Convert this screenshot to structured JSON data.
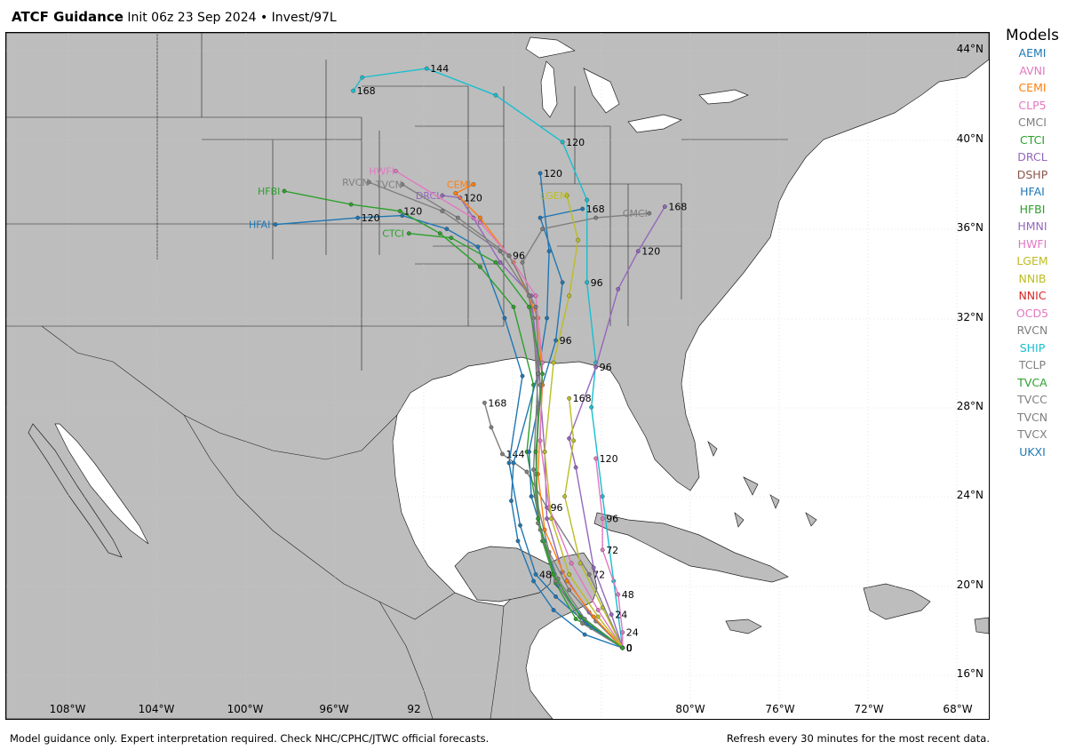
{
  "header": {
    "app": "ATCF Guidance",
    "subtitle": "Init 06z 23 Sep 2024 • Invest/97L"
  },
  "lat_labels": [
    "44°N",
    "40°N",
    "36°N",
    "32°N",
    "28°N",
    "24°N",
    "20°N",
    "16°N"
  ],
  "lon_labels": [
    "108°W",
    "104°W",
    "100°W",
    "96°W",
    "92",
    "80°W",
    "76°W",
    "72°W",
    "68°W"
  ],
  "legend": {
    "title": "Models",
    "items": [
      {
        "name": "AEMI",
        "color": "#1f77b4"
      },
      {
        "name": "AVNI",
        "color": "#e377c2"
      },
      {
        "name": "CEMI",
        "color": "#ff7f0e"
      },
      {
        "name": "CLP5",
        "color": "#e377c2"
      },
      {
        "name": "CMCI",
        "color": "#7f7f7f"
      },
      {
        "name": "CTCI",
        "color": "#2ca02c"
      },
      {
        "name": "DRCL",
        "color": "#9467bd"
      },
      {
        "name": "DSHP",
        "color": "#8c564b"
      },
      {
        "name": "HFAI",
        "color": "#1f77b4"
      },
      {
        "name": "HFBI",
        "color": "#2ca02c"
      },
      {
        "name": "HMNI",
        "color": "#9467bd"
      },
      {
        "name": "HWFI",
        "color": "#e377c2"
      },
      {
        "name": "LGEM",
        "color": "#bcbd22"
      },
      {
        "name": "NNIB",
        "color": "#bcbd22"
      },
      {
        "name": "NNIC",
        "color": "#d62728"
      },
      {
        "name": "OCD5",
        "color": "#e377c2"
      },
      {
        "name": "RVCN",
        "color": "#7f7f7f"
      },
      {
        "name": "SHIP",
        "color": "#17becf"
      },
      {
        "name": "TCLP",
        "color": "#7f7f7f"
      },
      {
        "name": "TVCA",
        "color": "#2ca02c"
      },
      {
        "name": "TVCC",
        "color": "#7f7f7f"
      },
      {
        "name": "TVCN",
        "color": "#7f7f7f"
      },
      {
        "name": "TVCX",
        "color": "#7f7f7f"
      },
      {
        "name": "UKXI",
        "color": "#1f77b4"
      }
    ]
  },
  "tracks": [
    {
      "model": "SHIP",
      "color": "#17becf",
      "label": "SHIP",
      "points": [
        [
          -83.1,
          17.2,
          "0"
        ],
        [
          -83.5,
          20.2,
          ""
        ],
        [
          -84.0,
          24.0,
          ""
        ],
        [
          -84.5,
          28.0,
          ""
        ],
        [
          -84.3,
          30.0,
          ""
        ],
        [
          -84.7,
          33.6,
          "96"
        ],
        [
          -84.7,
          37.3,
          ""
        ],
        [
          -85.8,
          39.9,
          "120"
        ],
        [
          -88.8,
          42.0,
          ""
        ],
        [
          -91.9,
          43.2,
          "144"
        ],
        [
          -94.8,
          42.8,
          ""
        ],
        [
          -95.2,
          42.2,
          "168"
        ]
      ]
    },
    {
      "model": "TCLP",
      "color": "#7f7f7f",
      "label": "TCLP",
      "points": [
        [
          -83.1,
          17.2,
          "0"
        ],
        [
          -84.6,
          20.5,
          "72"
        ],
        [
          -86.5,
          23.5,
          "96"
        ],
        [
          -87.4,
          25.1,
          ""
        ],
        [
          -88.5,
          25.9,
          "144"
        ],
        [
          -89.0,
          27.1,
          ""
        ],
        [
          -89.3,
          28.2,
          "168"
        ]
      ]
    },
    {
      "model": "OCD5",
      "color": "#e377c2",
      "label": "OCD5",
      "points": [
        [
          -83.1,
          17.2,
          "0"
        ],
        [
          -83.1,
          17.9,
          "24"
        ],
        [
          -83.3,
          19.6,
          "48"
        ],
        [
          -84.0,
          21.6,
          "72"
        ],
        [
          -84.0,
          23.0,
          "96"
        ],
        [
          -84.3,
          25.7,
          "120"
        ]
      ]
    },
    {
      "model": "HMNI",
      "color": "#9467bd",
      "label": "HMNI",
      "points": [
        [
          -83.1,
          17.2,
          "0"
        ],
        [
          -83.6,
          18.7,
          "24"
        ],
        [
          -84.4,
          20.8,
          ""
        ],
        [
          -85.2,
          25.3,
          ""
        ],
        [
          -85.5,
          26.6,
          ""
        ],
        [
          -84.3,
          29.8,
          "96"
        ],
        [
          -83.3,
          33.3,
          ""
        ],
        [
          -82.4,
          35.0,
          "120"
        ],
        [
          -81.2,
          37.0,
          "168"
        ]
      ]
    },
    {
      "model": "HFAI",
      "color": "#1f77b4",
      "label": "HFAI",
      "points": [
        [
          -83.1,
          17.2,
          "0"
        ],
        [
          -84.5,
          18.1,
          ""
        ],
        [
          -86.1,
          19.5,
          ""
        ],
        [
          -87.0,
          20.5,
          "48"
        ],
        [
          -87.7,
          22.7,
          ""
        ],
        [
          -88.2,
          25.5,
          ""
        ],
        [
          -87.6,
          29.4,
          ""
        ],
        [
          -88.4,
          32.0,
          ""
        ],
        [
          -89.6,
          35.2,
          ""
        ],
        [
          -91.0,
          36.0,
          ""
        ],
        [
          -93.0,
          36.6,
          ""
        ],
        [
          -95.0,
          36.5,
          "120"
        ],
        [
          -98.7,
          36.2,
          "HFAI"
        ]
      ]
    },
    {
      "model": "HFBI",
      "color": "#2ca02c",
      "label": "HFBI",
      "points": [
        [
          -83.1,
          17.2,
          "0"
        ],
        [
          -85.2,
          18.5,
          ""
        ],
        [
          -86.1,
          20.1,
          ""
        ],
        [
          -86.7,
          22.0,
          ""
        ],
        [
          -87.4,
          26.0,
          ""
        ],
        [
          -87.1,
          29.0,
          ""
        ],
        [
          -88.0,
          32.5,
          ""
        ],
        [
          -89.5,
          34.3,
          ""
        ],
        [
          -91.3,
          35.8,
          ""
        ],
        [
          -93.1,
          36.8,
          "120"
        ],
        [
          -95.3,
          37.1,
          ""
        ],
        [
          -98.3,
          37.7,
          "HFBI"
        ]
      ]
    },
    {
      "model": "UKXI",
      "color": "#1f77b4",
      "label": "UKXI",
      "points": [
        [
          -83.1,
          17.2,
          "0"
        ],
        [
          -84.8,
          17.8,
          ""
        ],
        [
          -86.2,
          18.9,
          ""
        ],
        [
          -87.1,
          20.2,
          ""
        ],
        [
          -87.8,
          22.0,
          ""
        ],
        [
          -88.1,
          23.8,
          ""
        ],
        [
          -88.0,
          25.5,
          ""
        ],
        [
          -86.9,
          29.5,
          ""
        ],
        [
          -86.5,
          32.0,
          ""
        ],
        [
          -86.4,
          35.0,
          ""
        ],
        [
          -86.8,
          38.5,
          "120"
        ]
      ]
    },
    {
      "model": "AEMI",
      "color": "#1f77b4",
      "label": "AEMI",
      "points": [
        [
          -83.1,
          17.2,
          "0"
        ],
        [
          -84.7,
          18.3,
          ""
        ],
        [
          -86.0,
          20.0,
          ""
        ],
        [
          -86.6,
          22.0,
          ""
        ],
        [
          -87.2,
          24.0,
          ""
        ],
        [
          -87.3,
          26.0,
          ""
        ],
        [
          -86.7,
          29.0,
          ""
        ],
        [
          -86.1,
          31.0,
          "96"
        ],
        [
          -85.8,
          33.6,
          ""
        ],
        [
          -86.8,
          36.5,
          ""
        ],
        [
          -84.9,
          36.9,
          "168"
        ]
      ]
    },
    {
      "model": "CMCI",
      "color": "#7f7f7f",
      "label": "CMCI",
      "points": [
        [
          -83.1,
          17.2,
          "0"
        ],
        [
          -84.3,
          18.4,
          ""
        ],
        [
          -85.5,
          19.8,
          ""
        ],
        [
          -86.4,
          21.5,
          ""
        ],
        [
          -87.0,
          24.0,
          ""
        ],
        [
          -86.9,
          28.0,
          ""
        ],
        [
          -87.1,
          32.0,
          ""
        ],
        [
          -87.6,
          34.5,
          ""
        ],
        [
          -86.7,
          36.0,
          ""
        ],
        [
          -84.3,
          36.5,
          ""
        ],
        [
          -81.9,
          36.7,
          "CMCI"
        ]
      ]
    },
    {
      "model": "DRCL",
      "color": "#9467bd",
      "label": "DRCL",
      "points": [
        [
          -83.1,
          17.2,
          "0"
        ],
        [
          -84.6,
          18.8,
          ""
        ],
        [
          -85.8,
          20.6,
          ""
        ],
        [
          -86.5,
          23.0,
          ""
        ],
        [
          -86.6,
          26.0,
          ""
        ],
        [
          -86.9,
          30.0,
          ""
        ],
        [
          -87.2,
          33.0,
          ""
        ],
        [
          -88.6,
          34.5,
          ""
        ],
        [
          -89.8,
          36.5,
          ""
        ],
        [
          -90.4,
          37.4,
          "120"
        ],
        [
          -91.2,
          37.5,
          "DRCL"
        ]
      ]
    },
    {
      "model": "CEMI",
      "color": "#ff7f0e",
      "label": "CEMI",
      "points": [
        [
          -83.1,
          17.2,
          "0"
        ],
        [
          -84.4,
          18.6,
          ""
        ],
        [
          -85.6,
          20.2,
          ""
        ],
        [
          -86.6,
          22.5,
          ""
        ],
        [
          -86.9,
          25.0,
          ""
        ],
        [
          -86.7,
          29.0,
          ""
        ],
        [
          -86.9,
          32.0,
          ""
        ],
        [
          -88.0,
          34.5,
          ""
        ],
        [
          -89.5,
          36.5,
          ""
        ],
        [
          -90.6,
          37.6,
          ""
        ],
        [
          -89.8,
          38.0,
          "CEMI"
        ]
      ]
    },
    {
      "model": "HWFI",
      "color": "#e377c2",
      "label": "HWFI",
      "points": [
        [
          -83.1,
          17.2,
          "0"
        ],
        [
          -84.2,
          18.9,
          ""
        ],
        [
          -85.4,
          21.0,
          ""
        ],
        [
          -86.4,
          23.5,
          ""
        ],
        [
          -86.8,
          26.5,
          ""
        ],
        [
          -86.7,
          30.0,
          ""
        ],
        [
          -87.0,
          33.0,
          ""
        ],
        [
          -88.2,
          34.8,
          "96"
        ],
        [
          -89.5,
          36.3,
          ""
        ],
        [
          -93.3,
          38.6,
          "HWFI"
        ]
      ]
    },
    {
      "model": "NNIB",
      "color": "#bcbd22",
      "label": "NNIB",
      "points": [
        [
          -83.1,
          17.2,
          "0"
        ],
        [
          -84.0,
          19.0,
          ""
        ],
        [
          -85.0,
          21.0,
          ""
        ],
        [
          -85.7,
          24.0,
          ""
        ],
        [
          -85.3,
          26.5,
          ""
        ],
        [
          -85.5,
          28.4,
          "168"
        ]
      ]
    },
    {
      "model": "LGEM",
      "color": "#bcbd22",
      "label": "LGEM",
      "points": [
        [
          -83.1,
          17.2,
          "0"
        ],
        [
          -84.2,
          18.6,
          ""
        ],
        [
          -85.5,
          20.5,
          ""
        ],
        [
          -86.3,
          23.0,
          ""
        ],
        [
          -86.6,
          26.0,
          ""
        ],
        [
          -86.2,
          30.0,
          ""
        ],
        [
          -85.5,
          33.0,
          ""
        ],
        [
          -85.1,
          35.5,
          ""
        ],
        [
          -85.6,
          37.5,
          "LGEM"
        ]
      ]
    },
    {
      "model": "TVCN",
      "color": "#7f7f7f",
      "label": "TVCN",
      "points": [
        [
          -83.1,
          17.2,
          "0"
        ],
        [
          -84.8,
          18.5,
          ""
        ],
        [
          -86.0,
          20.3,
          ""
        ],
        [
          -86.8,
          22.5,
          ""
        ],
        [
          -87.0,
          25.0,
          ""
        ],
        [
          -86.8,
          29.0,
          ""
        ],
        [
          -87.0,
          32.5,
          ""
        ],
        [
          -88.2,
          34.8,
          ""
        ],
        [
          -90.5,
          36.5,
          ""
        ],
        [
          -93.0,
          38.0,
          "TVCN"
        ]
      ]
    },
    {
      "model": "RVCN",
      "color": "#7f7f7f",
      "label": "RVCN",
      "points": [
        [
          -83.1,
          17.2,
          "0"
        ],
        [
          -84.9,
          18.3,
          ""
        ],
        [
          -86.1,
          20.2,
          ""
        ],
        [
          -86.9,
          22.8,
          ""
        ],
        [
          -87.1,
          25.2,
          ""
        ],
        [
          -86.9,
          29.5,
          ""
        ],
        [
          -87.3,
          33.0,
          ""
        ],
        [
          -88.6,
          35.0,
          ""
        ],
        [
          -91.2,
          36.8,
          ""
        ],
        [
          -94.5,
          38.1,
          "RVCN"
        ]
      ]
    },
    {
      "model": "CTCI",
      "color": "#2ca02c",
      "label": "CTCI",
      "points": [
        [
          -83.1,
          17.2,
          "0"
        ],
        [
          -85.0,
          18.6,
          ""
        ],
        [
          -86.2,
          20.5,
          ""
        ],
        [
          -86.9,
          23.0,
          ""
        ],
        [
          -87.0,
          26.0,
          ""
        ],
        [
          -86.7,
          29.5,
          ""
        ],
        [
          -87.3,
          32.5,
          ""
        ],
        [
          -88.8,
          34.5,
          ""
        ],
        [
          -90.8,
          35.6,
          ""
        ],
        [
          -92.7,
          35.8,
          "CTCI"
        ]
      ]
    }
  ],
  "footer": {
    "left": "Model guidance only. Expert interpretation required. Check NHC/CPHC/JTWC official forecasts.",
    "right": "Refresh every 30 minutes for the most recent data."
  }
}
